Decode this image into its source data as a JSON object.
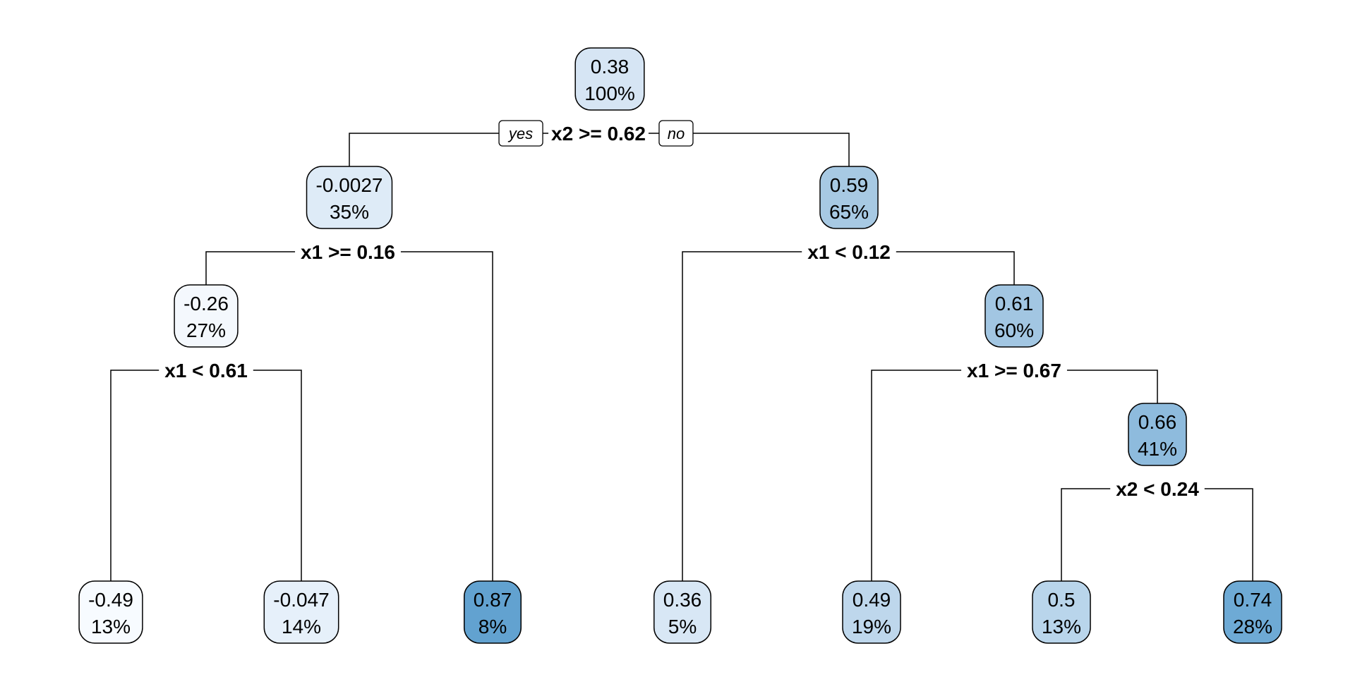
{
  "tree": {
    "yes_label": "yes",
    "no_label": "no",
    "nodes": {
      "n1": {
        "value": "0.38",
        "pct": "100%",
        "shade": "#d6e5f4"
      },
      "n2": {
        "value": "-0.0027",
        "pct": "35%",
        "shade": "#deebf7"
      },
      "n3": {
        "value": "0.59",
        "pct": "65%",
        "shade": "#a7c9e3"
      },
      "n4": {
        "value": "-0.26",
        "pct": "27%",
        "shade": "#f4f8fd"
      },
      "n5": {
        "value": "0.87",
        "pct": "8%",
        "shade": "#62a2d0"
      },
      "n6": {
        "value": "0.36",
        "pct": "5%",
        "shade": "#d8e7f5"
      },
      "n7": {
        "value": "0.61",
        "pct": "60%",
        "shade": "#a2c6e2"
      },
      "n8": {
        "value": "-0.49",
        "pct": "13%",
        "shade": "#f7fbff"
      },
      "n9": {
        "value": "-0.047",
        "pct": "14%",
        "shade": "#e6f0fa"
      },
      "n10": {
        "value": "0.49",
        "pct": "19%",
        "shade": "#bed7ec"
      },
      "n11": {
        "value": "0.66",
        "pct": "41%",
        "shade": "#8ebbdd"
      },
      "n12": {
        "value": "0.5",
        "pct": "13%",
        "shade": "#b9d5eb"
      },
      "n13": {
        "value": "0.74",
        "pct": "28%",
        "shade": "#6eaad5"
      }
    },
    "splits": {
      "s1": "x2 >= 0.62",
      "s2": "x1 >= 0.16",
      "s3": "x1 < 0.12",
      "s4": "x1 < 0.61",
      "s5": "x1 >= 0.67",
      "s6": "x2 < 0.24"
    }
  }
}
